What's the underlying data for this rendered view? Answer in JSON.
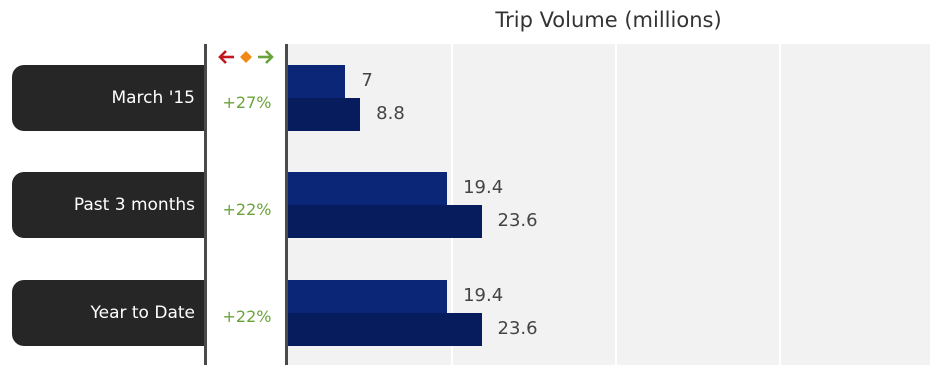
{
  "chart_data": {
    "type": "bar",
    "title": "Trip Volume (millions)",
    "orientation": "horizontal",
    "categories": [
      "March '15",
      "Past 3 months",
      "Year to Date"
    ],
    "series": [
      {
        "values": [
          7,
          19.4,
          19.4
        ]
      },
      {
        "values": [
          8.8,
          23.6,
          23.6
        ]
      }
    ],
    "data_labels": [
      [
        "7",
        "19.4",
        "19.4"
      ],
      [
        "8.8",
        "23.6",
        "23.6"
      ]
    ],
    "changes": [
      "+27%",
      "+22%",
      "+22%"
    ],
    "xlim": [
      0,
      80
    ],
    "grid": true,
    "legend_icons": [
      "arrow-left-icon",
      "diamond-icon",
      "arrow-right-icon"
    ],
    "colors": {
      "series1": "#0b2677",
      "series2": "#061c5c",
      "change_positive": "#6aa33a",
      "arrow_left": "#c0181d",
      "diamond": "#f08a16",
      "arrow_right": "#6aa33a",
      "category_tab": "#262626",
      "plot_background": "#f2f2f2"
    }
  }
}
